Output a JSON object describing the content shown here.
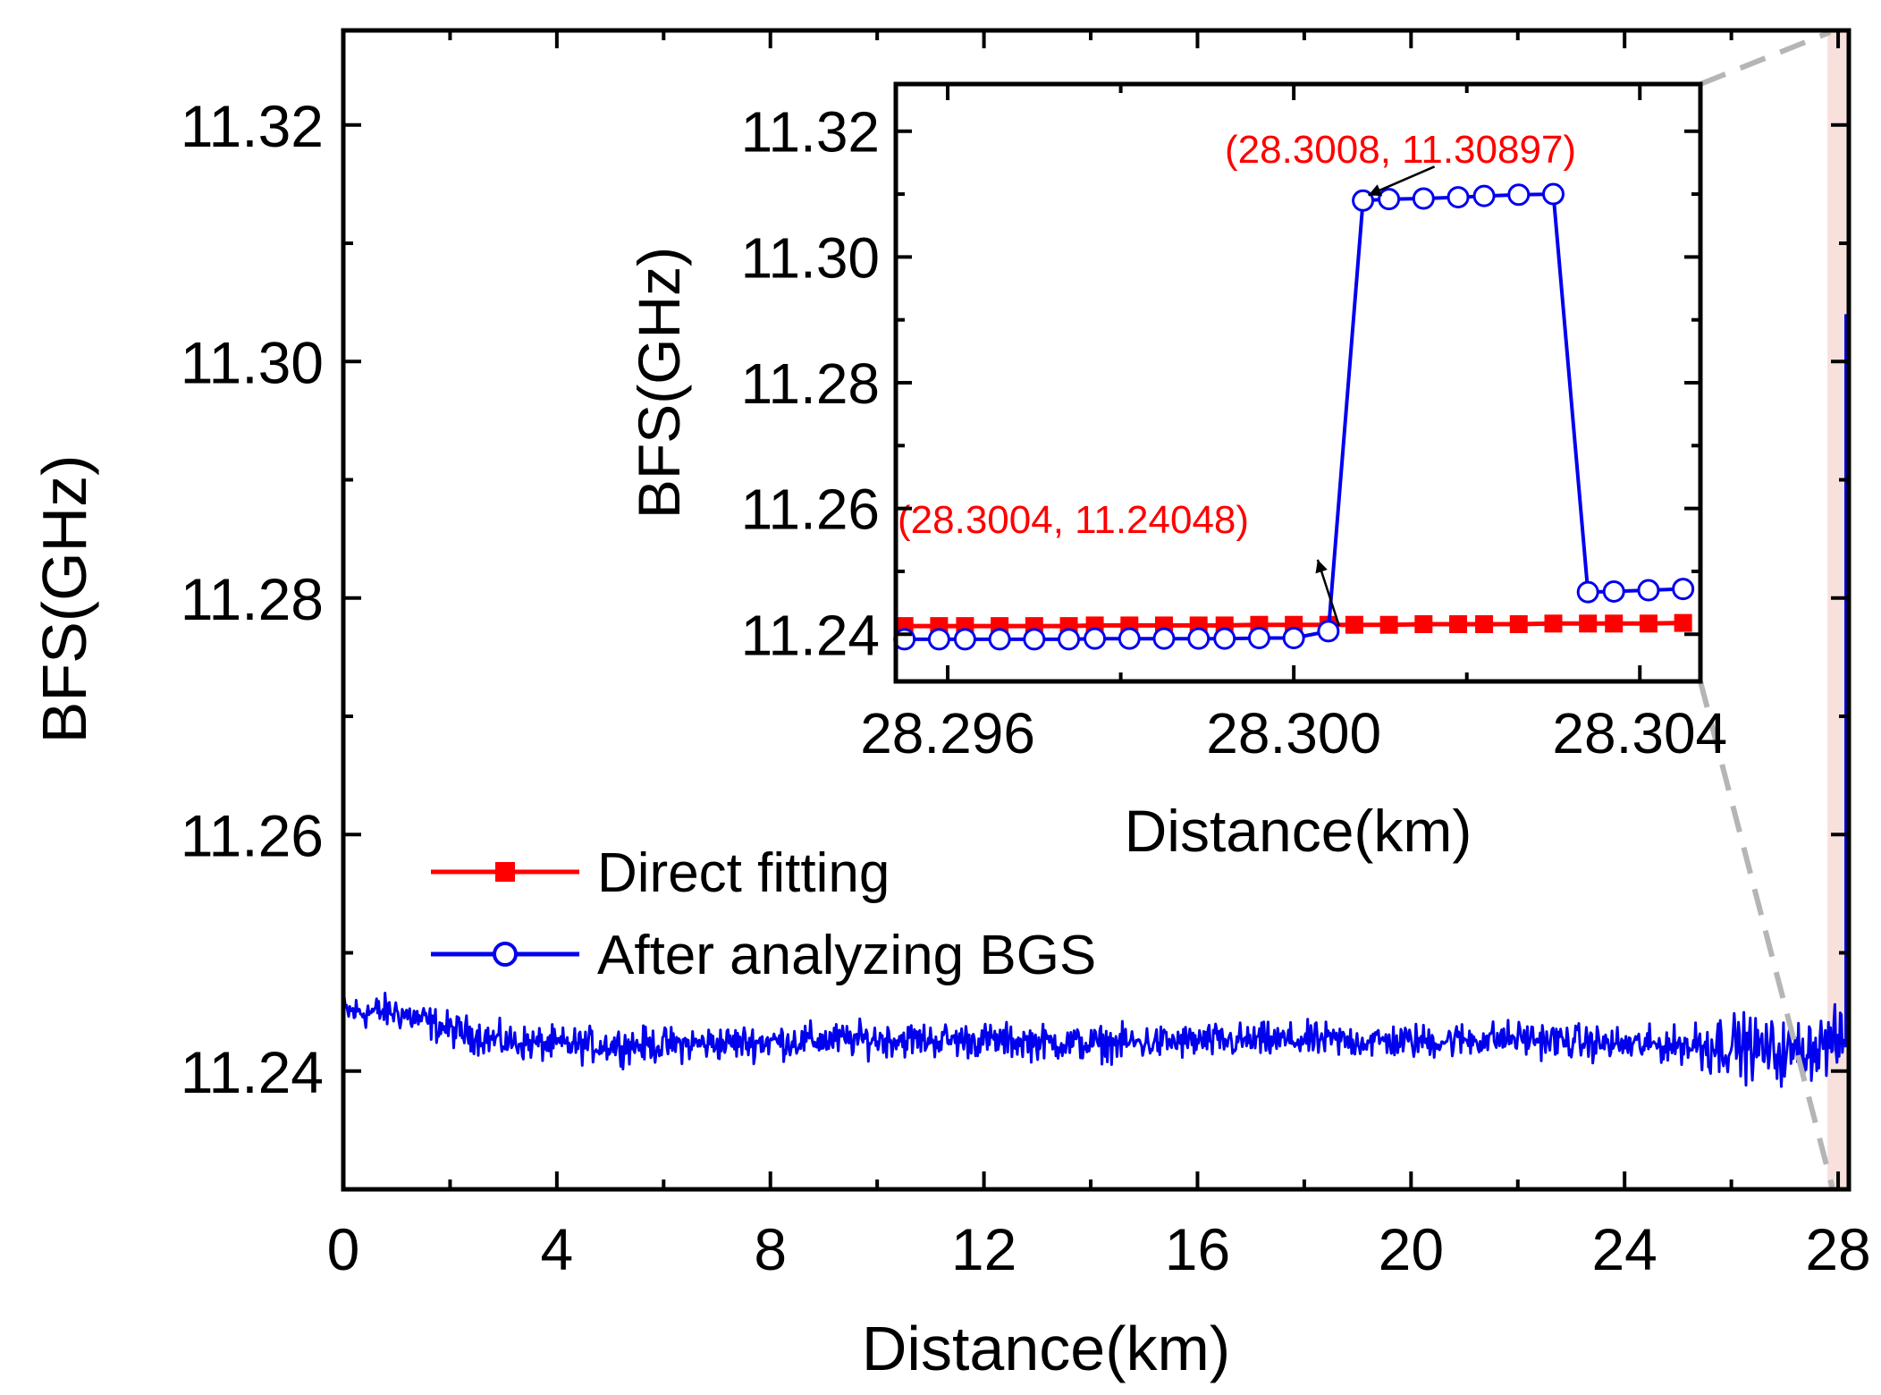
{
  "chart_data": {
    "type": "line",
    "main": {
      "xlabel": "Distance(km)",
      "ylabel": "BFS(GHz)",
      "xlim": [
        0,
        28.2
      ],
      "ylim": [
        11.23,
        11.328
      ],
      "xticks": [
        0,
        4,
        8,
        12,
        16,
        20,
        24,
        28
      ],
      "xtick_labels": [
        "0",
        "4",
        "8",
        "12",
        "16",
        "20",
        "24",
        "28"
      ],
      "yticks": [
        11.24,
        11.26,
        11.28,
        11.3,
        11.32
      ],
      "ytick_labels": [
        "11.24",
        "11.26",
        "11.28",
        "11.30",
        "11.32"
      ],
      "highlight_region": [
        27.8,
        28.2
      ],
      "highlight_color": "#f8e1dc",
      "series": [
        {
          "name": "After analyzing BGS",
          "color": "#0000ee",
          "style": "noisy line",
          "x": [
            0,
            1,
            2,
            3,
            4,
            6,
            8,
            10,
            12,
            14,
            16,
            18,
            20,
            22,
            24,
            25,
            26,
            27,
            28
          ],
          "y": [
            11.245,
            11.245,
            11.2435,
            11.2425,
            11.2422,
            11.2422,
            11.2425,
            11.2427,
            11.2426,
            11.2423,
            11.2425,
            11.2426,
            11.2425,
            11.2428,
            11.2422,
            11.2422,
            11.2423,
            11.2415,
            11.2425
          ],
          "noise_amplitude": 0.0011,
          "spike_near_end": {
            "x": 28.15,
            "y": 11.304
          }
        }
      ]
    },
    "inset": {
      "xlabel": "Distance(km)",
      "ylabel": "BFS(GHz)",
      "xlim": [
        28.2954,
        28.3047
      ],
      "ylim": [
        11.2325,
        11.3275
      ],
      "xticks": [
        28.296,
        28.3,
        28.304
      ],
      "xtick_labels": [
        "28.296",
        "28.300",
        "28.304"
      ],
      "yticks": [
        11.24,
        11.26,
        11.28,
        11.3,
        11.32
      ],
      "ytick_labels": [
        "11.24",
        "11.26",
        "11.28",
        "11.30",
        "11.32"
      ],
      "series": [
        {
          "name": "Direct fitting",
          "color": "#ff0000",
          "marker": "filled-square",
          "x": [
            28.2955,
            28.2959,
            28.2962,
            28.2966,
            28.297,
            28.2974,
            28.2977,
            28.2981,
            28.2985,
            28.2989,
            28.2992,
            28.2996,
            28.3,
            28.3004,
            28.3007,
            28.3011,
            28.3015,
            28.3019,
            28.3022,
            28.3026,
            28.303,
            28.3034,
            28.3037,
            28.3041,
            28.3045
          ],
          "y": [
            11.2413,
            11.2413,
            11.2413,
            11.2413,
            11.2413,
            11.2413,
            11.2414,
            11.2414,
            11.2414,
            11.2414,
            11.2414,
            11.2415,
            11.2415,
            11.2415,
            11.2415,
            11.2415,
            11.2416,
            11.2416,
            11.2416,
            11.2416,
            11.2417,
            11.2417,
            11.2417,
            11.2417,
            11.2418
          ]
        },
        {
          "name": "After analyzing BGS",
          "color": "#0000ee",
          "marker": "open-circle",
          "x": [
            28.2955,
            28.2959,
            28.2962,
            28.2966,
            28.297,
            28.2974,
            28.2977,
            28.2981,
            28.2985,
            28.2989,
            28.2992,
            28.2996,
            28.3,
            28.3004,
            28.3008,
            28.3011,
            28.3015,
            28.3019,
            28.3022,
            28.3026,
            28.303,
            28.3034,
            28.3037,
            28.3041,
            28.3045
          ],
          "y": [
            11.2392,
            11.2392,
            11.2392,
            11.2392,
            11.2392,
            11.2392,
            11.2393,
            11.2393,
            11.2393,
            11.2393,
            11.2393,
            11.2394,
            11.2394,
            11.24048,
            11.30897,
            11.3092,
            11.3093,
            11.3095,
            11.3097,
            11.3099,
            11.31,
            11.2467,
            11.2468,
            11.247,
            11.2472
          ]
        }
      ],
      "annotations": [
        {
          "text": "(28.3008, 11.30897)",
          "color": "#ff0000",
          "point_x": 28.3008,
          "point_y": 11.30897,
          "placement": "above-right"
        },
        {
          "text": "(28.3004, 11.24048)",
          "color": "#ff0000",
          "point_x": 28.3004,
          "point_y": 11.24048,
          "placement": "above-left"
        }
      ]
    },
    "legend": {
      "placement": "center-left",
      "entries": [
        {
          "label": "Direct fitting",
          "color": "#ff0000",
          "marker": "filled-square"
        },
        {
          "label": "After analyzing BGS",
          "color": "#0000ee",
          "marker": "open-circle"
        }
      ]
    }
  }
}
